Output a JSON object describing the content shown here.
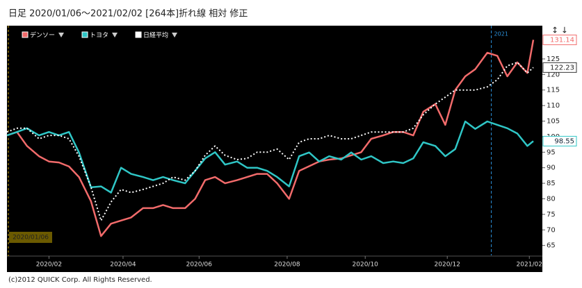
{
  "title": "日足 2020/01/06〜2021/02/02 [264本]折れ線 相対 修正",
  "footer": "(c)2012 QUICK Corp. All Rights Reserved.",
  "cursor_label": "2020/01/06",
  "chart_data": {
    "type": "line",
    "x": [
      0,
      5,
      10,
      16,
      21,
      26,
      31,
      36,
      42,
      47,
      52,
      57,
      62,
      68,
      73,
      78,
      83,
      89,
      94,
      99,
      104,
      109,
      115,
      120,
      125,
      130,
      135,
      141,
      146,
      151,
      156,
      161,
      167,
      172,
      177,
      182,
      188,
      193,
      198,
      203,
      208,
      214,
      219,
      224,
      229,
      234,
      240,
      245,
      250,
      255,
      260,
      263
    ],
    "xlim": [
      0,
      263
    ],
    "xticks": [
      {
        "value": 21,
        "label": "2020/02"
      },
      {
        "value": 58,
        "label": "2020/04"
      },
      {
        "value": 96,
        "label": "2020/06"
      },
      {
        "value": 140,
        "label": "2020/08"
      },
      {
        "value": 179,
        "label": "2020/10"
      },
      {
        "value": 220,
        "label": "2020/12"
      },
      {
        "value": 261,
        "label": "2021/02"
      }
    ],
    "ylim": [
      61.8,
      135.7
    ],
    "yticks": [
      65,
      70,
      75,
      80,
      85,
      90,
      95,
      100,
      105,
      110,
      115,
      120,
      125
    ],
    "markers": [
      {
        "label": "2021",
        "x": 242
      }
    ],
    "series": [
      {
        "name": "デンソー",
        "color": "#f26b6b",
        "dash": "solid",
        "values": [
          100.4,
          101.5,
          97,
          93.7,
          92,
          91.7,
          90.4,
          87,
          79.2,
          68,
          72,
          73,
          74,
          77,
          77,
          78,
          77,
          77,
          80,
          86,
          87,
          85,
          86,
          87,
          88,
          88,
          85,
          80,
          89,
          90.5,
          92,
          92.6,
          93,
          94,
          95,
          99.3,
          100.4,
          101.5,
          101.5,
          100.4,
          108,
          110.5,
          103.8,
          115,
          119.4,
          121.7,
          127,
          126,
          119.4,
          123.9,
          120.5,
          131.14
        ]
      },
      {
        "name": "トヨタ",
        "color": "#2fc6c6",
        "dash": "solid",
        "values": [
          100.4,
          101.5,
          102.7,
          100.4,
          101.5,
          100.4,
          101.5,
          94.9,
          83.7,
          84,
          82,
          90,
          88,
          87,
          86,
          87,
          86,
          85,
          89,
          93,
          95,
          91,
          92,
          90,
          90,
          89,
          87,
          84,
          93.7,
          94.9,
          92,
          93.7,
          92.6,
          94.9,
          92.6,
          93.7,
          91.5,
          92,
          91.5,
          93,
          98.2,
          97,
          93.7,
          96,
          104.9,
          102.5,
          104.9,
          103.8,
          102.7,
          101,
          97,
          98.55
        ]
      },
      {
        "name": "日経平均",
        "color": "#ffffff",
        "dash": "dotted",
        "values": [
          101.5,
          102.7,
          102.7,
          99.3,
          100.4,
          100.4,
          99.3,
          93.7,
          83.7,
          73,
          79,
          83,
          82,
          83,
          84,
          85,
          87,
          86,
          89,
          94,
          97,
          94,
          92.6,
          93,
          95,
          95,
          96,
          92.6,
          98.2,
          99.3,
          99.3,
          100.4,
          99.3,
          99.3,
          100.4,
          101.5,
          101.5,
          101.5,
          101.5,
          102.7,
          107,
          110.5,
          112.7,
          115,
          115,
          115,
          116,
          118.3,
          122.8,
          123.9,
          120.5,
          122.23
        ]
      }
    ]
  }
}
